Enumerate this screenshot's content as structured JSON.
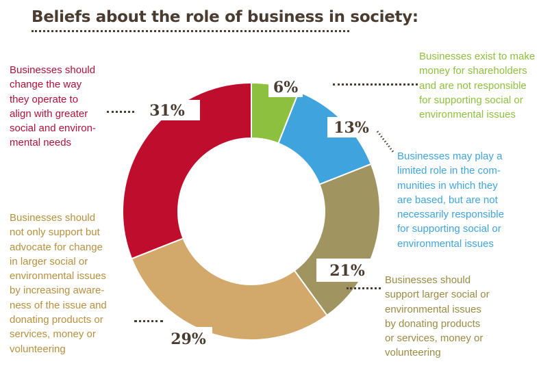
{
  "chart_data": {
    "type": "pie",
    "donut": true,
    "title": "Beliefs about the role of business in society:",
    "slices": [
      {
        "label": "Businesses exist to make money for shareholders and are not responsible for supporting social or environmental issues",
        "lines": [
          "Businesses exist to make",
          "money for shareholders",
          "and are not responsible",
          "for supporting social or",
          "environmental issues"
        ],
        "value": 6,
        "value_label": "6%",
        "color": "#8dc03f"
      },
      {
        "label": "Businesses may play a limited role in the communities in which they are based, but are not necessarily responsible for supporting social or environmental issues",
        "lines": [
          "Businesses may play a",
          "limited role in the com-",
          "munities in which they",
          "are based, but are not",
          "necessarily responsible",
          "for supporting social or",
          "environmental issues"
        ],
        "value": 13,
        "value_label": "13%",
        "color": "#3fa4de"
      },
      {
        "label": "Businesses should support larger social or environmental issues by donating products or services, money or volunteering",
        "lines": [
          "Businesses should",
          "support larger social or",
          "environmental issues",
          "by donating products",
          "or services, money or",
          "volunteering"
        ],
        "value": 21,
        "value_label": "21%",
        "color": "#a09461"
      },
      {
        "label": "Businesses should not only support but advocate for change in larger social or environmental issues by increasing awareness of the issue and donating products or services, money or volunteering",
        "lines": [
          "Businesses should",
          "not only support but",
          "advocate for change",
          "in larger social or",
          "environmental issues",
          "by increasing aware-",
          "ness of the issue and",
          "donating products or",
          "services, money or",
          "volunteering"
        ],
        "value": 29,
        "value_label": "29%",
        "color": "#d3a96b"
      },
      {
        "label": "Businesses should change the way they operate to align with greater social and environmental needs",
        "lines": [
          "Businesses should",
          "change the way",
          "they operate to",
          "align with greater",
          "social and environ-",
          "mental needs"
        ],
        "value": 31,
        "value_label": "31%",
        "color": "#bf0d2e"
      }
    ],
    "text_colors": [
      "#8dc03f",
      "#3fa4de",
      "#9a8a44",
      "#b7903f",
      "#b0103a"
    ],
    "legend": "none",
    "label_color": "#4a3c30"
  }
}
